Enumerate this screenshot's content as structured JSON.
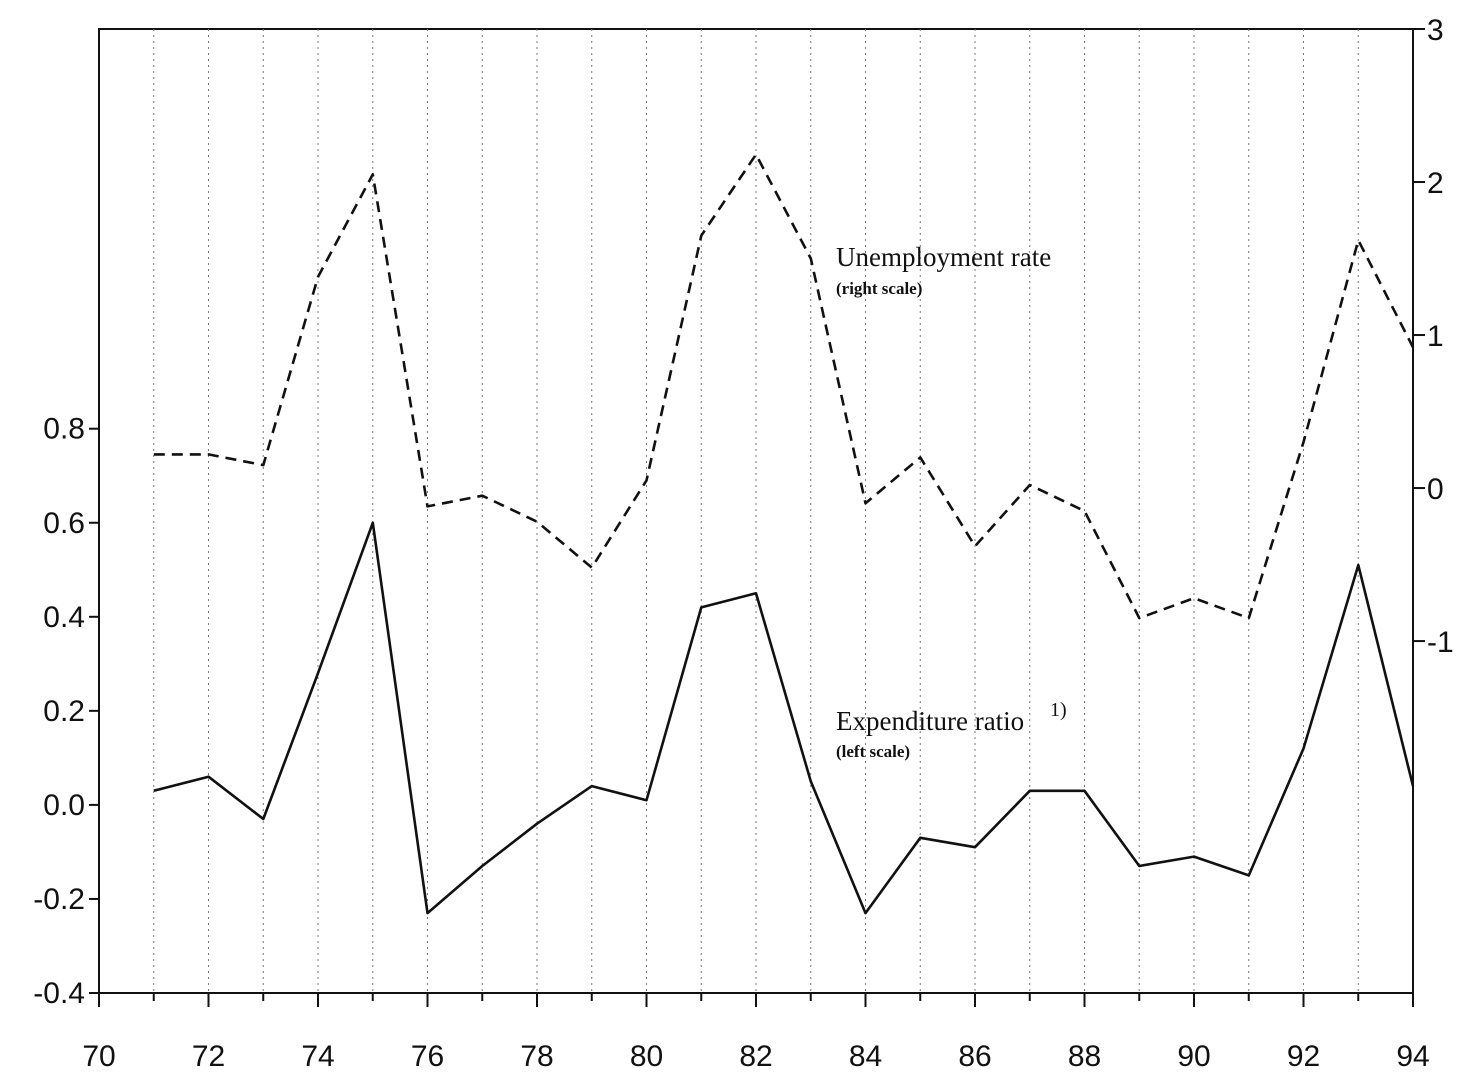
{
  "chart_data": {
    "type": "line",
    "x": [
      71,
      72,
      73,
      74,
      75,
      76,
      77,
      78,
      79,
      80,
      81,
      82,
      83,
      84,
      85,
      86,
      87,
      88,
      89,
      90,
      91,
      92,
      93,
      94
    ],
    "series": [
      {
        "name": "Unemployment rate",
        "axis": "right",
        "style": "dashed",
        "values": [
          0.22,
          0.22,
          0.15,
          1.38,
          2.05,
          -0.12,
          -0.05,
          -0.22,
          -0.52,
          0.05,
          1.65,
          2.18,
          1.5,
          -0.1,
          0.2,
          -0.38,
          0.02,
          -0.15,
          -0.85,
          -0.72,
          -0.85,
          0.3,
          1.62,
          0.92
        ]
      },
      {
        "name": "Expenditure ratio",
        "axis": "left",
        "style": "solid",
        "values": [
          0.03,
          0.06,
          -0.03,
          0.28,
          0.6,
          -0.23,
          -0.13,
          -0.04,
          0.04,
          0.01,
          0.42,
          0.45,
          0.05,
          -0.23,
          -0.07,
          -0.09,
          0.03,
          0.03,
          -0.13,
          -0.11,
          -0.15,
          0.12,
          0.51,
          0.04
        ]
      }
    ],
    "xlim": [
      70,
      94
    ],
    "x_ticks": [
      "70",
      "72",
      "74",
      "76",
      "78",
      "80",
      "82",
      "84",
      "86",
      "88",
      "90",
      "92",
      "94"
    ],
    "y_left_lim": [
      -0.4,
      1.65
    ],
    "y_left_ticks": [
      "0.8",
      "0.6",
      "0.4",
      "0.2",
      "0.0",
      "-0.2",
      "-0.4"
    ],
    "y_right_lim": [
      -3.3,
      3
    ],
    "y_right_ticks": [
      "3",
      "2",
      "1",
      "0",
      "-1"
    ],
    "grid": "vertical dotted at each year",
    "annotations": {
      "unemployment_label": "Unemployment rate",
      "unemployment_sub": "(right scale)",
      "expenditure_label": "Expenditure ratio",
      "expenditure_sup": "1)",
      "expenditure_sub": "(left scale)"
    }
  }
}
